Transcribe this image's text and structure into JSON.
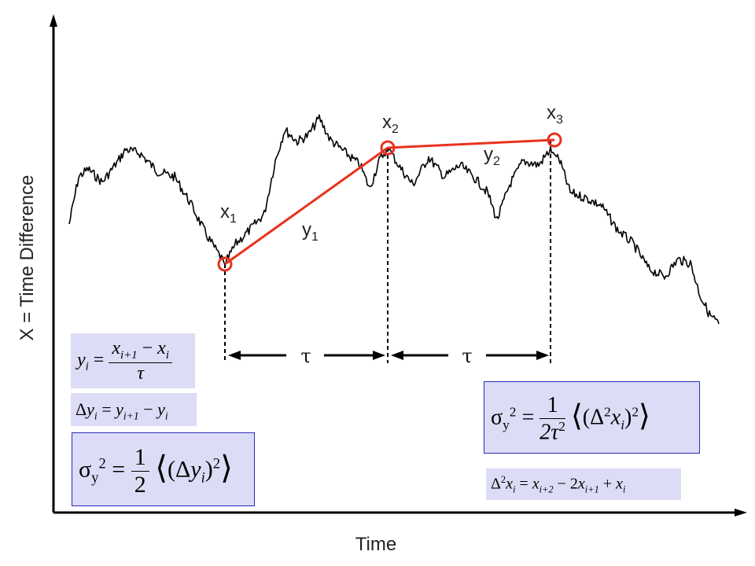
{
  "axes": {
    "x_label": "Time",
    "y_label": "X = Time Difference"
  },
  "points": [
    {
      "name": "x",
      "sub": "1"
    },
    {
      "name": "x",
      "sub": "2"
    },
    {
      "name": "x",
      "sub": "3"
    }
  ],
  "segments": [
    {
      "name": "y",
      "sub": "1"
    },
    {
      "name": "y",
      "sub": "2"
    }
  ],
  "intervals": [
    "τ",
    "τ"
  ],
  "colors": {
    "trace": "#000000",
    "highlight": "#e8321e",
    "box_fill": "#dcdcf6",
    "box_border": "#2b2bb8"
  },
  "equations": {
    "yi_def": {
      "lhs": "y",
      "lhs_sub": "i",
      "num": "x",
      "num_sub1": "i+1",
      "minus": " − ",
      "num_x": "x",
      "num_sub2": "i",
      "den": "τ"
    },
    "delta_y": {
      "text_prefix": "Δ",
      "y": "y",
      "sub_i": "i",
      "eq": " = ",
      "y1": "y",
      "sub_i1": "i+1",
      "minus": " − ",
      "y2": "y",
      "sub_i2": "i"
    },
    "sigma_first": {
      "sigma": "σ",
      "sub": "y",
      "sup": "2",
      "eq": " = ",
      "num": "1",
      "den": "2",
      "body": "Δ",
      "y": "y",
      "yi": "i",
      "pow": "2"
    },
    "sigma_second": {
      "sigma": "σ",
      "sub": "y",
      "sup": "2",
      "eq": " = ",
      "num": "1",
      "den": "2τ",
      "den_sup": "2",
      "body": "Δ",
      "body_sup": "2",
      "x": "x",
      "xi": "i",
      "pow": "2"
    },
    "delta2_x": {
      "prefix": "Δ",
      "prefix_sup": "2",
      "x": "x",
      "sub_i": "i",
      "eq": " = ",
      "x1": "x",
      "sub1": "i+2",
      "minus": " − 2",
      "x2": "x",
      "sub2": "i+1",
      "plus": " + ",
      "x3": "x",
      "sub3": "i"
    }
  }
}
